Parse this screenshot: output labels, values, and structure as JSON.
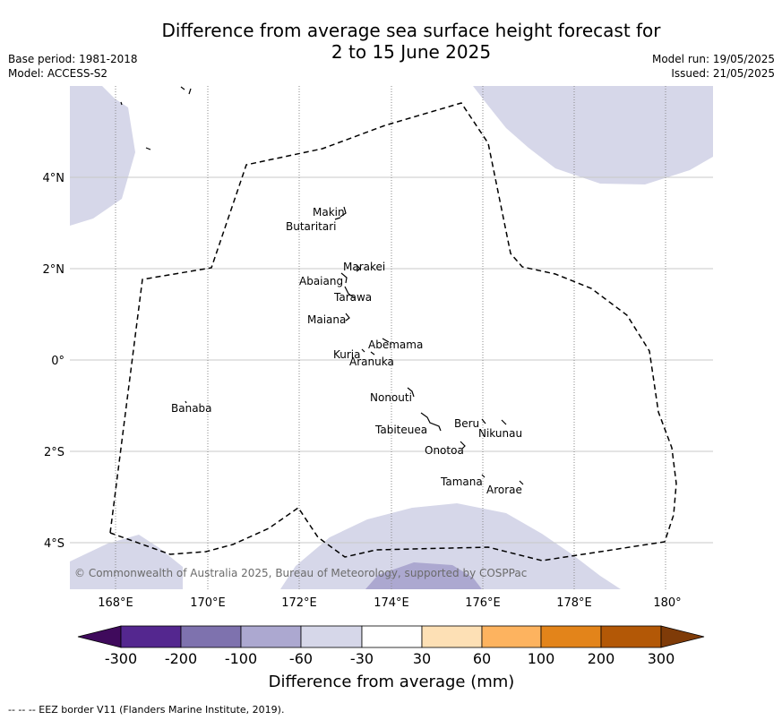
{
  "header": {
    "title_line1": "Difference from average sea surface height forecast for",
    "title_line2": "2 to 15 June 2025",
    "base_period": "Base period: 1981-2018",
    "model": "Model: ACCESS-S2",
    "model_run": "Model run: 19/05/2025",
    "issued": "Issued: 21/05/2025"
  },
  "map": {
    "lat_labels": [
      "4°N",
      "2°N",
      "0°",
      "2°S",
      "4°S"
    ],
    "lon_labels": [
      "168°E",
      "170°E",
      "172°E",
      "174°E",
      "176°E",
      "178°E",
      "180°"
    ],
    "places": [
      "Makin",
      "Butaritari",
      "Marakei",
      "Abaiang",
      "Tarawa",
      "Maiana",
      "Abemama",
      "Kuria",
      "Aranuka",
      "Nonouti",
      "Banaba",
      "Beru",
      "Nikunau",
      "Tabiteuea",
      "Onotoa",
      "Tamana",
      "Arorae"
    ],
    "copyright": "© Commonwealth of Australia 2025, Bureau of Meteorology, supported by COSPPac",
    "colors": {
      "minus30_60": "#d6d7e9",
      "minus60_100": "#aca8d0"
    }
  },
  "colorbar": {
    "ticks": [
      "-300",
      "-200",
      "-100",
      "-60",
      "-30",
      "30",
      "60",
      "100",
      "200",
      "300"
    ],
    "label": "Difference from average (mm)",
    "colors": [
      "#3f0a5c",
      "#54278f",
      "#7e72ae",
      "#aca8d0",
      "#d6d7e9",
      "#ffffff",
      "#fde0b5",
      "#fdb35f",
      "#e3841a",
      "#b35806",
      "#7f3b08"
    ]
  },
  "footnote": "--  --  -- EEZ border V11 (Flanders Marine Institute, 2019)."
}
